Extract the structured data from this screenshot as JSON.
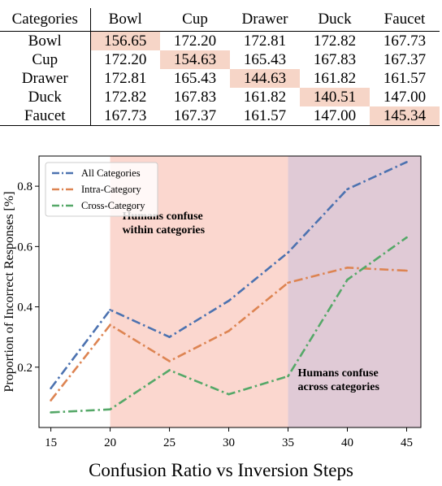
{
  "table": {
    "corner_label": "Categories",
    "columns": [
      "Bowl",
      "Cup",
      "Drawer",
      "Duck",
      "Faucet"
    ],
    "rows": [
      {
        "label": "Bowl",
        "values": [
          "156.65",
          "172.20",
          "172.81",
          "172.82",
          "167.73"
        ]
      },
      {
        "label": "Cup",
        "values": [
          "172.20",
          "154.63",
          "165.43",
          "167.83",
          "167.37"
        ]
      },
      {
        "label": "Drawer",
        "values": [
          "172.81",
          "165.43",
          "144.63",
          "161.82",
          "161.57"
        ]
      },
      {
        "label": "Duck",
        "values": [
          "172.82",
          "167.83",
          "161.82",
          "140.51",
          "147.00"
        ]
      },
      {
        "label": "Faucet",
        "values": [
          "167.73",
          "167.37",
          "161.57",
          "147.00",
          "145.34"
        ]
      }
    ],
    "highlight_color": "#f6d5c7"
  },
  "chart_data": {
    "type": "line",
    "title": "",
    "xlabel": "",
    "ylabel": "Proportion of Incorrect Responses [%]",
    "x": [
      15,
      20,
      25,
      30,
      35,
      40,
      45
    ],
    "xticks": [
      15,
      20,
      25,
      30,
      35,
      40,
      45
    ],
    "yticks": [
      0.2,
      0.4,
      0.6,
      0.8
    ],
    "xlim": [
      14,
      46.2
    ],
    "ylim": [
      0.0,
      0.9
    ],
    "grid": false,
    "legend_position": "top-left",
    "series": [
      {
        "name": "All Categories",
        "color": "#4c72b0",
        "values": [
          0.13,
          0.39,
          0.3,
          0.42,
          0.58,
          0.79,
          0.88
        ]
      },
      {
        "name": "Intra-Category",
        "color": "#dd8452",
        "values": [
          0.09,
          0.34,
          0.22,
          0.32,
          0.48,
          0.53,
          0.52
        ]
      },
      {
        "name": "Cross-Category",
        "color": "#55a868",
        "values": [
          0.05,
          0.06,
          0.19,
          0.11,
          0.17,
          0.49,
          0.63
        ]
      }
    ],
    "regions": [
      {
        "x_start": 20,
        "x_end": 35,
        "color": "#fbd7cf",
        "label_lines": [
          "Humans confuse",
          "within categories"
        ],
        "label_y": 0.69
      },
      {
        "x_start": 35,
        "x_end": 46.2,
        "color": "#e0cad6",
        "label_lines": [
          "Humans confuse",
          "across categories"
        ],
        "label_y": 0.17
      }
    ]
  },
  "caption": "Confusion Ratio vs Inversion Steps"
}
